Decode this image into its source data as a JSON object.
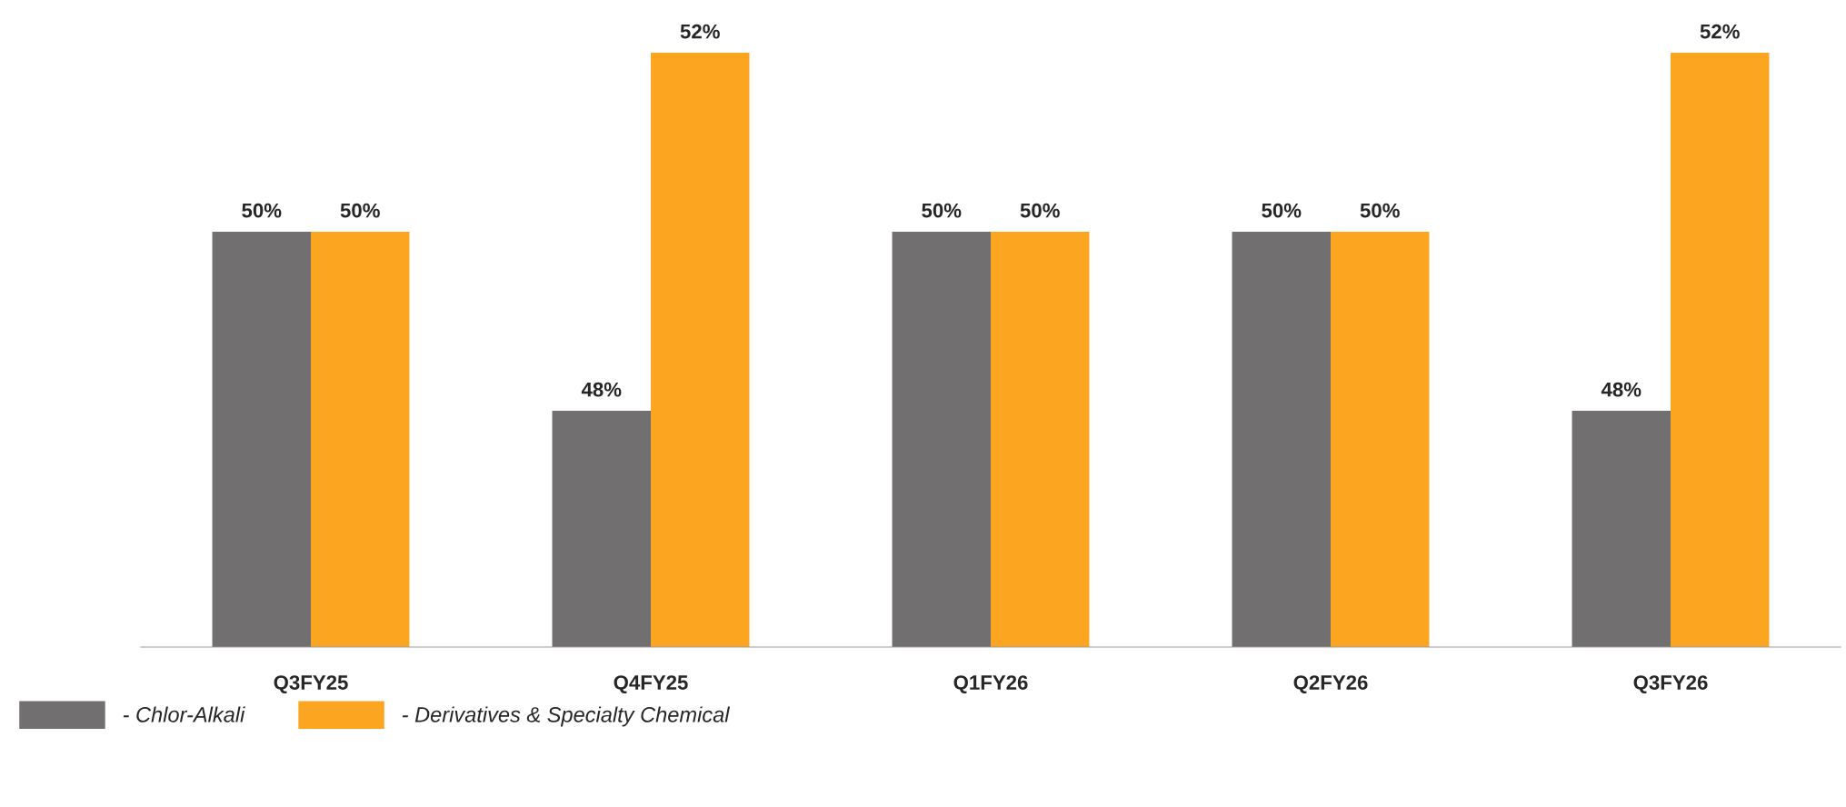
{
  "chart_data": {
    "type": "bar",
    "ylim": [
      45.36,
      52
    ],
    "categories": [
      "Q3FY25",
      "Q4FY25",
      "Q1FY26",
      "Q2FY26",
      "Q3FY26"
    ],
    "series": [
      {
        "name": "- Chlor-Alkali",
        "color": "#716f6f",
        "values": [
          50,
          48,
          50,
          50,
          48
        ],
        "value_labels": [
          "50%",
          "48%",
          "50%",
          "50%",
          "48%"
        ]
      },
      {
        "name": "- Derivatives & Specialty Chemical",
        "color": "#fca520",
        "values": [
          50,
          52,
          50,
          50,
          52
        ],
        "value_labels": [
          "50%",
          "52%",
          "50%",
          "50%",
          "52%"
        ]
      }
    ],
    "legend": "bottom left",
    "grid": false
  }
}
